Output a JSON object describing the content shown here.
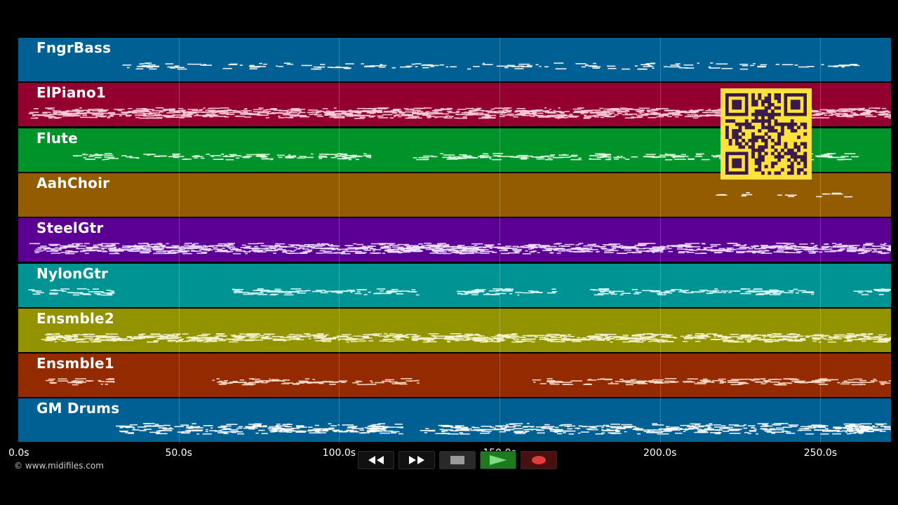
{
  "app": {
    "copyright": "© www.midifiles.com"
  },
  "tracks": [
    {
      "label": "FngrBass",
      "color": "#005f93",
      "note_color": "#ffffff"
    },
    {
      "label": "ElPiano1",
      "color": "#93002f",
      "note_color": "#ffd0e0"
    },
    {
      "label": "Flute",
      "color": "#00932a",
      "note_color": "#e6ffe6"
    },
    {
      "label": "AahChoir",
      "color": "#935c00",
      "note_color": "#ffffff"
    },
    {
      "label": "SteelGtr",
      "color": "#5c0093",
      "note_color": "#f0e0ff"
    },
    {
      "label": "NylonGtr",
      "color": "#009393",
      "note_color": "#e0ffff"
    },
    {
      "label": "Ensmble2",
      "color": "#939300",
      "note_color": "#f4f4d0"
    },
    {
      "label": "Ensmble1",
      "color": "#932a00",
      "note_color": "#ffe0d0"
    },
    {
      "label": "GM Drums",
      "color": "#005f93",
      "note_color": "#ffffff"
    }
  ],
  "timeline": {
    "start_s": 0,
    "end_s": 272,
    "ticks": [
      {
        "value": 0,
        "label": "0.0s"
      },
      {
        "value": 50,
        "label": "50.0s"
      },
      {
        "value": 100,
        "label": "100.0s"
      },
      {
        "value": 150,
        "label": "150.0s"
      },
      {
        "value": 200,
        "label": "200.0s"
      },
      {
        "value": 250,
        "label": "250.0s"
      }
    ]
  },
  "transport": {
    "rewind_icon": "rewind-icon",
    "fast_forward_icon": "fast-forward-icon",
    "stop_icon": "stop-icon",
    "play_icon": "play-icon",
    "record_icon": "record-icon",
    "play_color": "#1e7a1e",
    "record_color": "#e23b3b"
  },
  "qr_code": {
    "icon": "qr-code-icon",
    "color": "#ffe23a"
  }
}
